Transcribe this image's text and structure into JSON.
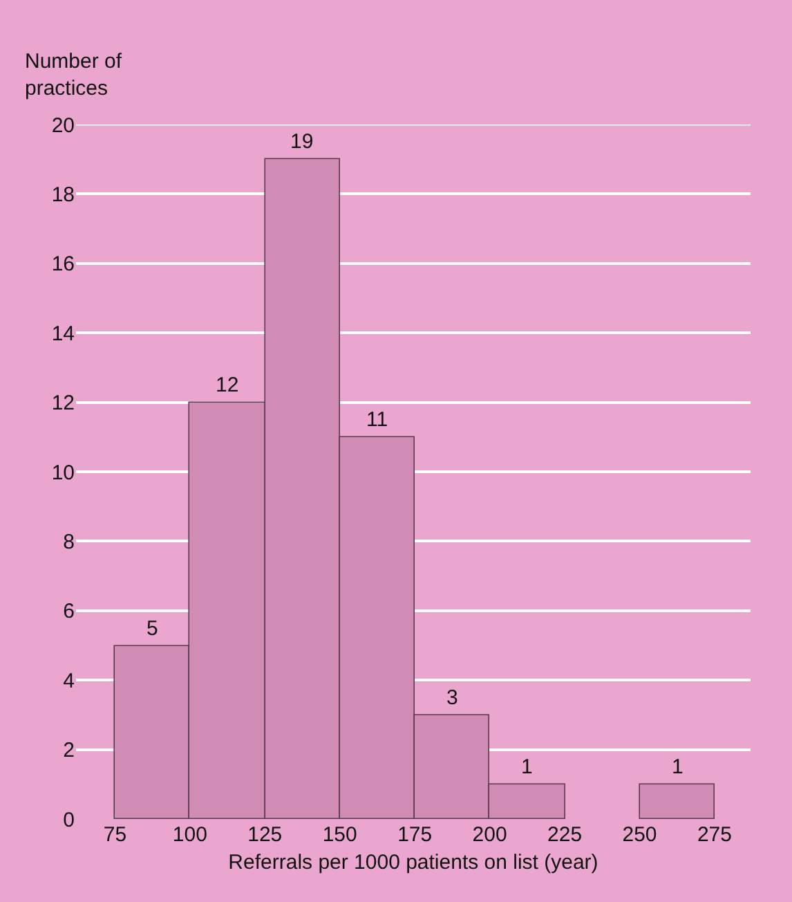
{
  "chart_data": {
    "type": "histogram",
    "xlabel": "Referrals per 1000 patients on list (year)",
    "ylabel": "Number of practices",
    "bins": [
      75,
      100,
      125,
      150,
      175,
      200,
      225,
      250,
      275
    ],
    "values": [
      5,
      12,
      19,
      11,
      3,
      1,
      0,
      1
    ],
    "value_labels": [
      "5",
      "12",
      "19",
      "11",
      "3",
      "1",
      null,
      "1"
    ],
    "color": "#d08cb4",
    "xlim": [
      62,
      287
    ],
    "xticks": [
      75,
      100,
      125,
      150,
      175,
      200,
      225,
      250,
      275
    ],
    "ylim": [
      0,
      20
    ],
    "yticks": [
      0,
      2,
      4,
      6,
      8,
      10,
      12,
      14,
      16,
      18,
      20
    ],
    "grid": "y",
    "legend": false
  }
}
